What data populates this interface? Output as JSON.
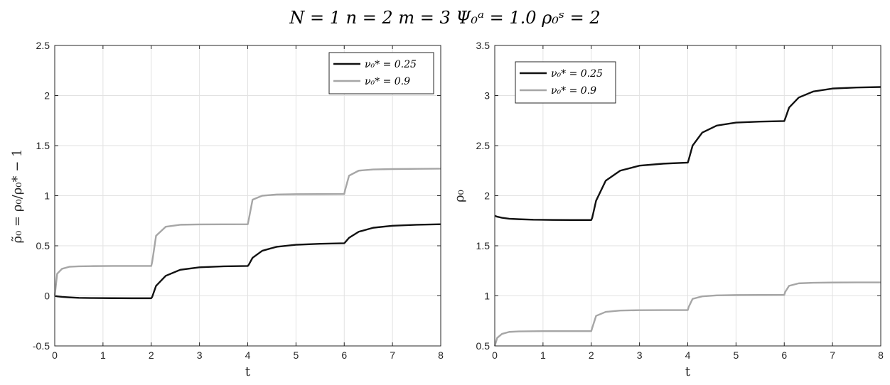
{
  "figure": {
    "title": "N = 1     n = 2     m = 3     Ψ₀ᵃ = 1.0     ρ₀ˢ = 2"
  },
  "colors": {
    "series_dark": "#111111",
    "series_light": "#a6a6a6",
    "grid": "#e2e2e2",
    "axis": "#262626"
  },
  "chart_data": [
    {
      "type": "line",
      "title": "",
      "xlabel": "t",
      "ylabel": "ρ̃₀ = ρ₀/ρ₀* − 1",
      "xlim": [
        0,
        8
      ],
      "ylim": [
        -0.5,
        2.5
      ],
      "xticks": [
        "0",
        "1",
        "2",
        "3",
        "4",
        "5",
        "6",
        "7",
        "8"
      ],
      "yticks": [
        "-0.5",
        "0",
        "0.5",
        "1",
        "1.5",
        "2",
        "2.5"
      ],
      "grid": true,
      "legend_position": "top-right",
      "x": [
        0,
        0.05,
        0.15,
        0.3,
        0.5,
        0.8,
        1.2,
        1.6,
        2.0,
        2.02,
        2.1,
        2.3,
        2.6,
        3.0,
        3.5,
        4.0,
        4.02,
        4.1,
        4.3,
        4.6,
        5.0,
        5.5,
        6.0,
        6.02,
        6.1,
        6.3,
        6.6,
        7.0,
        7.5,
        8.0
      ],
      "series": [
        {
          "name": "ν₀* = 0.25",
          "color": "#111111",
          "values": [
            0.0,
            -0.005,
            -0.01,
            -0.015,
            -0.02,
            -0.022,
            -0.023,
            -0.024,
            -0.024,
            -0.01,
            0.1,
            0.2,
            0.26,
            0.285,
            0.295,
            0.298,
            0.31,
            0.38,
            0.45,
            0.49,
            0.51,
            0.52,
            0.525,
            0.535,
            0.58,
            0.64,
            0.68,
            0.7,
            0.71,
            0.715
          ]
        },
        {
          "name": "ν₀* = 0.9",
          "color": "#a6a6a6",
          "values": [
            0.0,
            0.22,
            0.27,
            0.29,
            0.295,
            0.297,
            0.298,
            0.298,
            0.298,
            0.34,
            0.6,
            0.69,
            0.71,
            0.713,
            0.714,
            0.715,
            0.76,
            0.96,
            1.0,
            1.012,
            1.015,
            1.016,
            1.017,
            1.06,
            1.2,
            1.25,
            1.262,
            1.266,
            1.268,
            1.27
          ]
        }
      ]
    },
    {
      "type": "line",
      "title": "",
      "xlabel": "t",
      "ylabel": "ρ₀",
      "xlim": [
        0,
        8
      ],
      "ylim": [
        0.5,
        3.5
      ],
      "xticks": [
        "0",
        "1",
        "2",
        "3",
        "4",
        "5",
        "6",
        "7",
        "8"
      ],
      "yticks": [
        "0.5",
        "1",
        "1.5",
        "2",
        "2.5",
        "3",
        "3.5"
      ],
      "grid": true,
      "legend_position": "top-left",
      "x": [
        0,
        0.05,
        0.15,
        0.3,
        0.5,
        0.8,
        1.2,
        1.6,
        2.0,
        2.02,
        2.1,
        2.3,
        2.6,
        3.0,
        3.5,
        4.0,
        4.02,
        4.1,
        4.3,
        4.6,
        5.0,
        5.5,
        6.0,
        6.02,
        6.1,
        6.3,
        6.6,
        7.0,
        7.5,
        8.0
      ],
      "series": [
        {
          "name": "ν₀* = 0.25",
          "color": "#111111",
          "values": [
            1.8,
            1.79,
            1.78,
            1.77,
            1.765,
            1.76,
            1.758,
            1.757,
            1.757,
            1.78,
            1.95,
            2.15,
            2.25,
            2.3,
            2.32,
            2.33,
            2.36,
            2.5,
            2.63,
            2.7,
            2.73,
            2.74,
            2.745,
            2.77,
            2.88,
            2.98,
            3.04,
            3.07,
            3.08,
            3.085
          ]
        },
        {
          "name": "ν₀* = 0.9",
          "color": "#a6a6a6",
          "values": [
            0.5,
            0.58,
            0.62,
            0.64,
            0.645,
            0.647,
            0.648,
            0.648,
            0.648,
            0.68,
            0.8,
            0.84,
            0.853,
            0.857,
            0.858,
            0.858,
            0.89,
            0.97,
            0.995,
            1.005,
            1.008,
            1.009,
            1.01,
            1.04,
            1.1,
            1.125,
            1.131,
            1.133,
            1.134,
            1.134
          ]
        }
      ]
    }
  ]
}
